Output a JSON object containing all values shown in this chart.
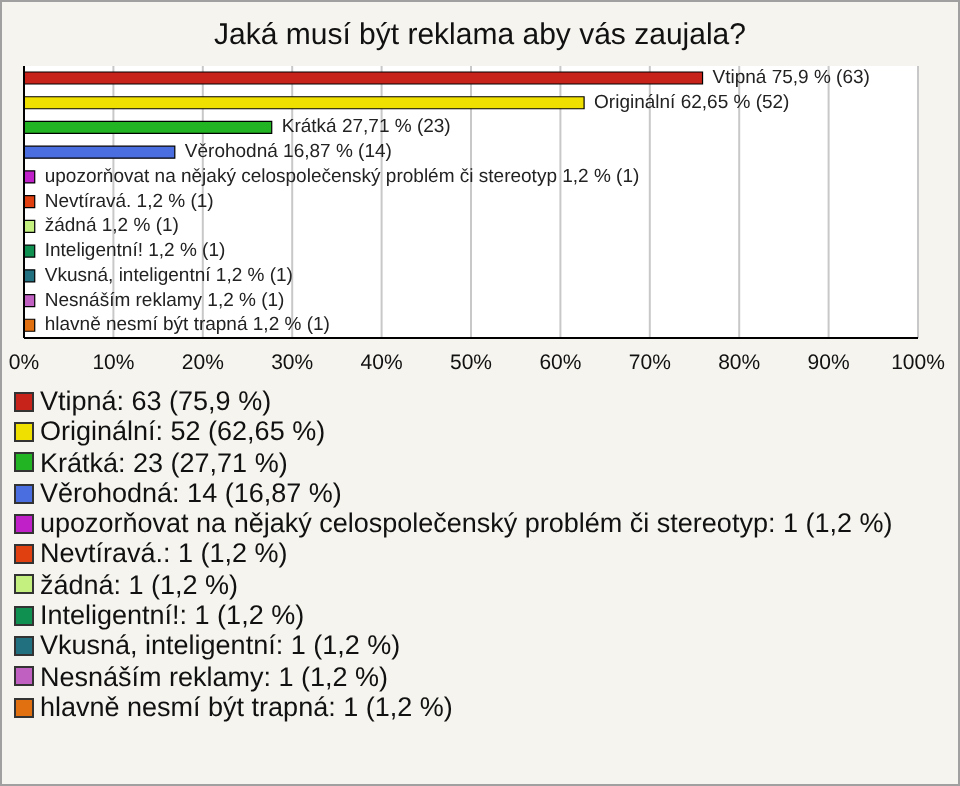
{
  "chart_data": {
    "type": "bar",
    "title": "Jaká musí být reklama aby vás zaujala?",
    "orientation": "horizontal",
    "stacked": true,
    "categories": [
      null,
      null,
      null,
      null,
      null,
      null,
      null,
      null,
      null,
      null,
      null
    ],
    "series": [
      {
        "name": "Vtipná: 63 (75,9 %)",
        "color": "#c8231a",
        "values": [
          75.9,
          null,
          null,
          null,
          null,
          null,
          null,
          null,
          null,
          null,
          null
        ],
        "value_labels": [
          "Vtipná 75,9 % (63)",
          null,
          null,
          null,
          null,
          null,
          null,
          null,
          null,
          null,
          null
        ]
      },
      {
        "name": "Originální: 52 (62,65 %)",
        "color": "#f0e000",
        "values": [
          null,
          62.65,
          null,
          null,
          null,
          null,
          null,
          null,
          null,
          null,
          null
        ],
        "value_labels": [
          null,
          "Originální 62,65 % (52)",
          null,
          null,
          null,
          null,
          null,
          null,
          null,
          null,
          null
        ]
      },
      {
        "name": "Krátká: 23 (27,71 %)",
        "color": "#22b422",
        "values": [
          null,
          null,
          27.71,
          null,
          null,
          null,
          null,
          null,
          null,
          null,
          null
        ],
        "value_labels": [
          null,
          null,
          "Krátká 27,71 % (23)",
          null,
          null,
          null,
          null,
          null,
          null,
          null,
          null
        ]
      },
      {
        "name": "Věrohodná: 14 (16,87 %)",
        "color": "#4a6ee0",
        "values": [
          null,
          null,
          null,
          16.87,
          null,
          null,
          null,
          null,
          null,
          null,
          null
        ],
        "value_labels": [
          null,
          null,
          null,
          "Věrohodná 16,87 % (14)",
          null,
          null,
          null,
          null,
          null,
          null,
          null
        ]
      },
      {
        "name": "upozorňovat na nějaký celospolečenský problém či stereotyp: 1 (1,2 %)",
        "color": "#c020c8",
        "values": [
          null,
          null,
          null,
          null,
          1.2,
          null,
          null,
          null,
          null,
          null,
          null
        ],
        "value_labels": [
          null,
          null,
          null,
          null,
          "upozorňovat na nějaký celospolečenský problém či stereotyp 1,2 % (1)",
          null,
          null,
          null,
          null,
          null,
          null
        ]
      },
      {
        "name": "Nevtíravá.: 1 (1,2 %)",
        "color": "#e04010",
        "values": [
          null,
          null,
          null,
          null,
          null,
          1.2,
          null,
          null,
          null,
          null,
          null
        ],
        "value_labels": [
          null,
          null,
          null,
          null,
          null,
          "Nevtíravá. 1,2 % (1)",
          null,
          null,
          null,
          null,
          null
        ]
      },
      {
        "name": "žádná: 1 (1,2 %)",
        "color": "#c4f080",
        "values": [
          null,
          null,
          null,
          null,
          null,
          null,
          1.2,
          null,
          null,
          null,
          null
        ],
        "value_labels": [
          null,
          null,
          null,
          null,
          null,
          null,
          "žádná 1,2 % (1)",
          null,
          null,
          null,
          null
        ]
      },
      {
        "name": "Inteligentní!: 1 (1,2 %)",
        "color": "#109050",
        "values": [
          null,
          null,
          null,
          null,
          null,
          null,
          null,
          1.2,
          null,
          null,
          null
        ],
        "value_labels": [
          null,
          null,
          null,
          null,
          null,
          null,
          null,
          "Inteligentní! 1,2 % (1)",
          null,
          null,
          null
        ]
      },
      {
        "name": "Vkusná, inteligentní: 1 (1,2 %)",
        "color": "#207080",
        "values": [
          null,
          null,
          null,
          null,
          null,
          null,
          null,
          null,
          1.2,
          null,
          null
        ],
        "value_labels": [
          null,
          null,
          null,
          null,
          null,
          null,
          null,
          null,
          "Vkusná, inteligentní 1,2 % (1)",
          null,
          null
        ]
      },
      {
        "name": "Nesnáším reklamy: 1 (1,2 %)",
        "color": "#c060c0",
        "values": [
          null,
          null,
          null,
          null,
          null,
          null,
          null,
          null,
          null,
          1.2,
          null
        ],
        "value_labels": [
          null,
          null,
          null,
          null,
          null,
          null,
          null,
          null,
          null,
          "Nesnáším reklamy 1,2 % (1)",
          null
        ]
      },
      {
        "name": "hlavně nesmí být trapná: 1 (1,2 %)",
        "color": "#e07010",
        "values": [
          null,
          null,
          null,
          null,
          null,
          null,
          null,
          null,
          null,
          null,
          1.2
        ],
        "value_labels": [
          null,
          null,
          null,
          null,
          null,
          null,
          null,
          null,
          null,
          null,
          "hlavně nesmí být trapná 1,2 % (1)"
        ]
      }
    ],
    "xlim": [
      0,
      100
    ],
    "xticks": [
      {
        "value": 0,
        "label": "0%"
      },
      {
        "value": 10,
        "label": "10%"
      },
      {
        "value": 20,
        "label": "20%"
      },
      {
        "value": 30,
        "label": "30%"
      },
      {
        "value": 40,
        "label": "40%"
      },
      {
        "value": 50,
        "label": "50%"
      },
      {
        "value": 60,
        "label": "60%"
      },
      {
        "value": 70,
        "label": "70%"
      },
      {
        "value": 80,
        "label": "80%"
      },
      {
        "value": 90,
        "label": "90%"
      },
      {
        "value": 100,
        "label": "100%"
      }
    ],
    "tick_labels": "x",
    "grid": "x",
    "legend": "bottom"
  }
}
